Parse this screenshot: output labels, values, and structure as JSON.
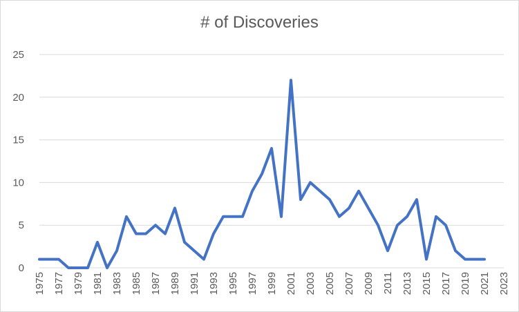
{
  "chart_data": {
    "type": "line",
    "title": "# of Discoveries",
    "xlabel": "",
    "ylabel": "",
    "ylim": [
      0,
      25
    ],
    "yticks": [
      0,
      5,
      10,
      15,
      20,
      25
    ],
    "xlim": [
      1975,
      2023
    ],
    "xtick_labels": [
      "1975",
      "1977",
      "1979",
      "1981",
      "1983",
      "1985",
      "1987",
      "1989",
      "1991",
      "1993",
      "1995",
      "1997",
      "1999",
      "2001",
      "2003",
      "2005",
      "2007",
      "2009",
      "2011",
      "2013",
      "2015",
      "2017",
      "2019",
      "2021",
      "2023"
    ],
    "grid": true,
    "legend": "none",
    "color": "#4472c4",
    "x": [
      1975,
      1976,
      1977,
      1978,
      1979,
      1980,
      1981,
      1982,
      1983,
      1984,
      1985,
      1986,
      1987,
      1988,
      1989,
      1990,
      1991,
      1992,
      1993,
      1994,
      1995,
      1996,
      1997,
      1998,
      1999,
      2000,
      2001,
      2002,
      2003,
      2004,
      2005,
      2006,
      2007,
      2008,
      2009,
      2010,
      2011,
      2012,
      2013,
      2014,
      2015,
      2016,
      2017,
      2018,
      2019,
      2020,
      2021
    ],
    "values": [
      1,
      1,
      1,
      0,
      0,
      0,
      3,
      0,
      2,
      6,
      4,
      4,
      5,
      4,
      7,
      3,
      2,
      1,
      4,
      6,
      6,
      6,
      9,
      11,
      14,
      6,
      22,
      8,
      10,
      9,
      8,
      6,
      7,
      9,
      7,
      5,
      2,
      5,
      6,
      8,
      1,
      6,
      5,
      2,
      1,
      1,
      1
    ]
  }
}
